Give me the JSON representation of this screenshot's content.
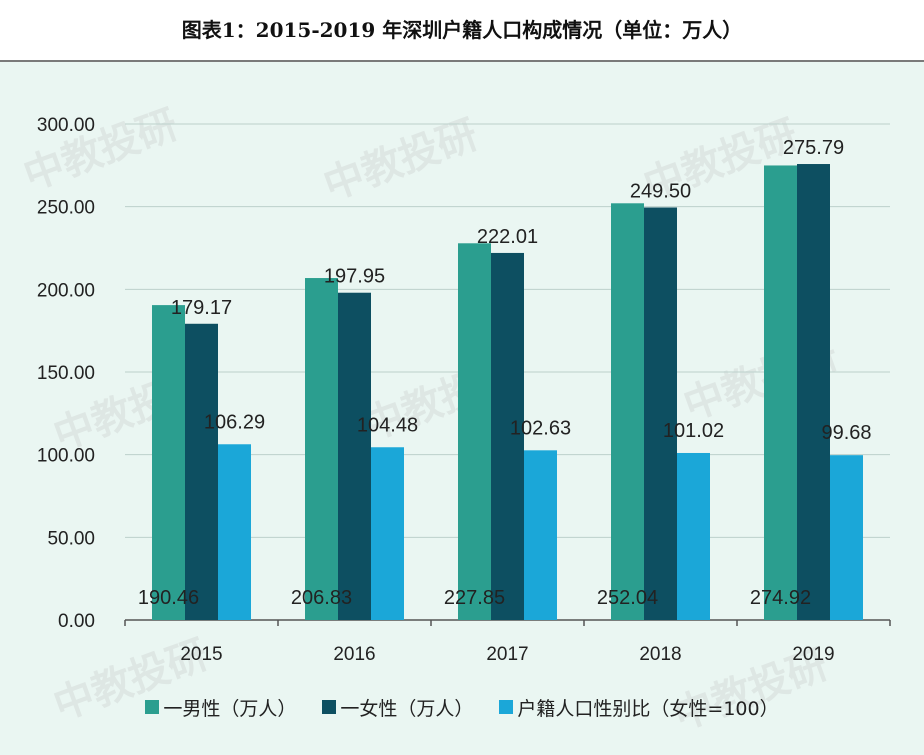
{
  "title": "图表1：2015-2019 年深圳户籍人口构成情况（单位：万人）",
  "watermark": "中教投研",
  "colors": {
    "male": "#2b9e8f",
    "female": "#0d4f61",
    "ratio": "#1ba7d8"
  },
  "legend": [
    {
      "key": "male",
      "label": "一男性（万人）"
    },
    {
      "key": "female",
      "label": "一女性（万人）"
    },
    {
      "key": "ratio",
      "label": "户籍人口性别比（女性=100）"
    }
  ],
  "chart_data": {
    "type": "bar",
    "title": "图表1：2015-2019 年深圳户籍人口构成情况（单位：万人）",
    "categories": [
      "2015",
      "2016",
      "2017",
      "2018",
      "2019"
    ],
    "series": [
      {
        "name": "一男性（万人）",
        "values": [
          190.46,
          206.83,
          227.85,
          252.04,
          274.92
        ]
      },
      {
        "name": "一女性（万人）",
        "values": [
          179.17,
          197.95,
          222.01,
          249.5,
          275.79
        ]
      },
      {
        "name": "户籍人口性别比（女性=100）",
        "values": [
          106.29,
          104.48,
          102.63,
          101.02,
          99.68
        ]
      }
    ],
    "y_ticks": [
      "0.00",
      "50.00",
      "100.00",
      "150.00",
      "200.00",
      "250.00",
      "300.00"
    ],
    "ylim": [
      0,
      300
    ],
    "grid": true,
    "legend_position": "bottom"
  }
}
